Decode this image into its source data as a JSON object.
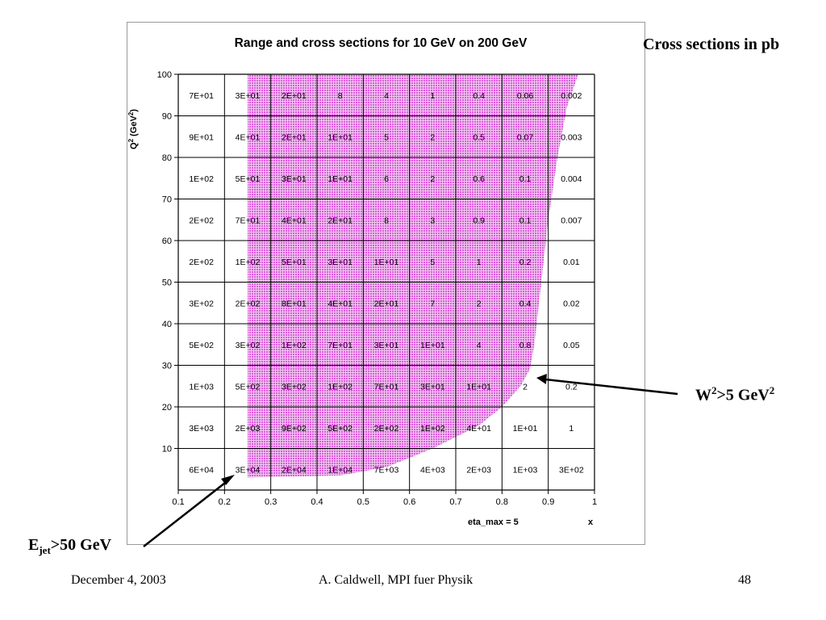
{
  "slide": {
    "side_label": "Cross sections in pb",
    "w2_label": {
      "main": "W",
      "sup1": "2",
      "mid": ">5 GeV",
      "sup2": "2"
    },
    "ejet_label": {
      "main": "E",
      "sub": "jet",
      "rest": ">50 GeV"
    },
    "footer": {
      "date": "December 4, 2003",
      "author": "A. Caldwell, MPI fuer Physik",
      "page": "48"
    }
  },
  "chart_data": {
    "type": "heatmap",
    "title": "Range and cross sections for 10 GeV on 200 GeV",
    "xlabel": "x",
    "annotation": "eta_max = 5",
    "ylabel": {
      "base": "Q",
      "sup1": "2",
      "mid": " (GeV",
      "sup2": "2",
      "end": ")"
    },
    "xlim": [
      0.1,
      1.0
    ],
    "ylim": [
      0,
      100
    ],
    "x_ticks": [
      "0.1",
      "0.2",
      "0.3",
      "0.4",
      "0.5",
      "0.6",
      "0.7",
      "0.8",
      "0.9",
      "1"
    ],
    "y_ticks": [
      "10",
      "20",
      "30",
      "40",
      "50",
      "60",
      "70",
      "80",
      "90",
      "100"
    ],
    "x_bins": [
      0.1,
      0.2,
      0.3,
      0.4,
      0.5,
      0.6,
      0.7,
      0.8,
      0.9,
      1.0
    ],
    "y_bins": [
      0,
      10,
      20,
      30,
      40,
      50,
      60,
      70,
      80,
      90,
      100
    ],
    "cells_top_to_bottom": [
      [
        "7E+01",
        "3E+01",
        "2E+01",
        "8",
        "4",
        "1",
        "0.4",
        "0.06",
        "0.002"
      ],
      [
        "9E+01",
        "4E+01",
        "2E+01",
        "1E+01",
        "5",
        "2",
        "0.5",
        "0.07",
        "0.003"
      ],
      [
        "1E+02",
        "5E+01",
        "3E+01",
        "1E+01",
        "6",
        "2",
        "0.6",
        "0.1",
        "0.004"
      ],
      [
        "2E+02",
        "7E+01",
        "4E+01",
        "2E+01",
        "8",
        "3",
        "0.9",
        "0.1",
        "0.007"
      ],
      [
        "2E+02",
        "1E+02",
        "5E+01",
        "3E+01",
        "1E+01",
        "5",
        "1",
        "0.2",
        "0.01"
      ],
      [
        "3E+02",
        "2E+02",
        "8E+01",
        "4E+01",
        "2E+01",
        "7",
        "2",
        "0.4",
        "0.02"
      ],
      [
        "5E+02",
        "3E+02",
        "1E+02",
        "7E+01",
        "3E+01",
        "1E+01",
        "4",
        "0.8",
        "0.05"
      ],
      [
        "1E+03",
        "5E+02",
        "3E+02",
        "1E+02",
        "7E+01",
        "3E+01",
        "1E+01",
        "2",
        "0.2"
      ],
      [
        "3E+03",
        "2E+03",
        "9E+02",
        "5E+02",
        "2E+02",
        "1E+02",
        "4E+01",
        "1E+01",
        "1"
      ],
      [
        "6E+04",
        "3E+04",
        "2E+04",
        "1E+04",
        "7E+03",
        "4E+03",
        "2E+03",
        "1E+03",
        "3E+02"
      ]
    ],
    "shaded_region": {
      "description": "accessible kinematic region",
      "left_x": 0.25,
      "boundary": [
        [
          0.25,
          3
        ],
        [
          0.45,
          3.5
        ],
        [
          0.55,
          5.5
        ],
        [
          0.65,
          10
        ],
        [
          0.75,
          15.5
        ],
        [
          0.8,
          20
        ],
        [
          0.84,
          25
        ],
        [
          0.86,
          29
        ],
        [
          0.87,
          35
        ],
        [
          0.88,
          45
        ],
        [
          0.89,
          55
        ],
        [
          0.9,
          65
        ],
        [
          0.92,
          80
        ],
        [
          0.94,
          92
        ],
        [
          0.965,
          100
        ]
      ],
      "color": "#e070e0"
    },
    "grid": true
  }
}
